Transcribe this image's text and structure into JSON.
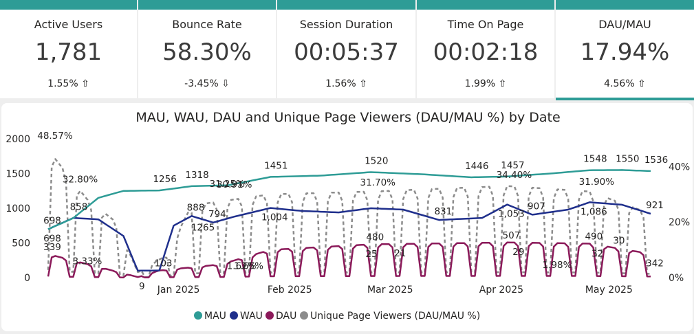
{
  "kpis": [
    {
      "label": "Active Users",
      "value": "1,781",
      "delta": "1.55% ⇧"
    },
    {
      "label": "Bounce Rate",
      "value": "58.30%",
      "delta": "-3.45% ⇩"
    },
    {
      "label": "Session Duration",
      "value": "00:05:37",
      "delta": "1.56% ⇧"
    },
    {
      "label": "Time On Page",
      "value": "00:02:18",
      "delta": "1.99% ⇧"
    },
    {
      "label": "DAU/MAU",
      "value": "17.94%",
      "delta": "4.56% ⇧"
    }
  ],
  "colors": {
    "kpi_accent": "#2e9c96",
    "mau": "#2e9c96",
    "wau": "#1f2f8c",
    "dau": "#8b1a5a",
    "ratio": "#8c8c8c"
  },
  "chart_data": {
    "type": "line",
    "title": "MAU, WAU, DAU and Unique Page Viewers (DAU/MAU %) by Date",
    "x_range": [
      "2024-12-01",
      "2025-05-18"
    ],
    "x_ticks": [
      "Jan 2025",
      "Feb 2025",
      "Mar 2025",
      "Apr 2025",
      "May 2025"
    ],
    "y_left": {
      "min": 0,
      "max": 2000,
      "ticks": [
        "0",
        "500",
        "1000",
        "1500",
        "2000"
      ]
    },
    "y_right": {
      "min": 0,
      "max": 50,
      "ticks": [
        "0%",
        "20%",
        "40%"
      ]
    },
    "grid": false,
    "legend_position": "bottom-center",
    "series": [
      {
        "name": "MAU",
        "axis": "left",
        "points": [
          [
            "2024-12-01",
            698
          ],
          [
            "2024-12-08",
            858
          ],
          [
            "2024-12-15",
            1150
          ],
          [
            "2024-12-22",
            1250
          ],
          [
            "2025-01-01",
            1256
          ],
          [
            "2025-01-10",
            1318
          ],
          [
            "2025-01-20",
            1330
          ],
          [
            "2025-02-01",
            1451
          ],
          [
            "2025-02-15",
            1470
          ],
          [
            "2025-03-01",
            1520
          ],
          [
            "2025-03-15",
            1490
          ],
          [
            "2025-03-29",
            1446
          ],
          [
            "2025-04-08",
            1457
          ],
          [
            "2025-04-20",
            1500
          ],
          [
            "2025-05-01",
            1548
          ],
          [
            "2025-05-10",
            1550
          ],
          [
            "2025-05-18",
            1536
          ]
        ]
      },
      {
        "name": "WAU",
        "axis": "left",
        "points": [
          [
            "2024-12-01",
            698
          ],
          [
            "2024-12-08",
            860
          ],
          [
            "2024-12-15",
            840
          ],
          [
            "2024-12-22",
            600
          ],
          [
            "2024-12-26",
            100
          ],
          [
            "2025-01-01",
            103
          ],
          [
            "2025-01-05",
            750
          ],
          [
            "2025-01-10",
            888
          ],
          [
            "2025-01-16",
            794
          ],
          [
            "2025-01-22",
            880
          ],
          [
            "2025-02-01",
            1004
          ],
          [
            "2025-02-10",
            960
          ],
          [
            "2025-02-20",
            940
          ],
          [
            "2025-03-01",
            1000
          ],
          [
            "2025-03-10",
            980
          ],
          [
            "2025-03-20",
            831
          ],
          [
            "2025-04-01",
            860
          ],
          [
            "2025-04-08",
            1053
          ],
          [
            "2025-04-15",
            907
          ],
          [
            "2025-04-25",
            980
          ],
          [
            "2025-05-01",
            1086
          ],
          [
            "2025-05-10",
            1050
          ],
          [
            "2025-05-18",
            921
          ]
        ]
      },
      {
        "name": "DAU",
        "axis": "left",
        "points": [
          [
            "2024-12-01",
            339
          ],
          [
            "2024-12-26",
            9
          ],
          [
            "2025-01-01",
            103
          ],
          [
            "2025-01-18",
            190
          ],
          [
            "2025-02-01",
            400
          ],
          [
            "2025-03-01",
            480
          ],
          [
            "2025-04-08",
            507
          ],
          [
            "2025-05-01",
            490
          ],
          [
            "2025-05-18",
            342
          ]
        ]
      },
      {
        "name": "Unique Page Viewers (DAU/MAU %)",
        "axis": "right",
        "points": [
          [
            "2024-12-01",
            48.57
          ],
          [
            "2024-12-08",
            32.8
          ],
          [
            "2024-12-10",
            3.33
          ],
          [
            "2025-01-18",
            31.25
          ],
          [
            "2025-01-20",
            30.91
          ],
          [
            "2025-01-22",
            1.62
          ],
          [
            "2025-01-24",
            1.65
          ],
          [
            "2025-03-01",
            31.7
          ],
          [
            "2025-04-08",
            34.4
          ],
          [
            "2025-04-20",
            1.98
          ],
          [
            "2025-05-01",
            31.9
          ]
        ]
      }
    ],
    "data_labels": {
      "mau": [
        {
          "date": "2024-12-08",
          "text": "858"
        },
        {
          "date": "2025-01-01",
          "text": "1256"
        },
        {
          "date": "2025-01-10",
          "text": "1318"
        },
        {
          "date": "2025-02-01",
          "text": "1451"
        },
        {
          "date": "2025-03-01",
          "text": "1520"
        },
        {
          "date": "2025-03-29",
          "text": "1446"
        },
        {
          "date": "2025-04-08",
          "text": "1457"
        },
        {
          "date": "2025-05-01",
          "text": "1548"
        },
        {
          "date": "2025-05-10",
          "text": "1550"
        },
        {
          "date": "2025-05-18",
          "text": "1536"
        }
      ],
      "wau": [
        {
          "date": "2024-12-01",
          "text": "698"
        },
        {
          "date": "2024-12-01b",
          "text": "698"
        },
        {
          "date": "2025-01-10",
          "text": "888"
        },
        {
          "date": "2025-01-12",
          "text": "1265"
        },
        {
          "date": "2025-01-16",
          "text": "794"
        },
        {
          "date": "2025-02-01",
          "text": "1,004"
        },
        {
          "date": "2025-03-20",
          "text": "831"
        },
        {
          "date": "2025-04-08",
          "text": "1,053"
        },
        {
          "date": "2025-04-15",
          "text": "907"
        },
        {
          "date": "2025-05-01",
          "text": "1,086"
        },
        {
          "date": "2025-05-18",
          "text": "921"
        }
      ],
      "dau": [
        {
          "date": "2024-12-01",
          "text": "339"
        },
        {
          "date": "2024-12-26",
          "text": "9"
        },
        {
          "date": "2025-01-01",
          "text": "103"
        },
        {
          "date": "2025-02-28",
          "text": "25"
        },
        {
          "date": "2025-03-01",
          "text": "480"
        },
        {
          "date": "2025-03-08",
          "text": "21"
        },
        {
          "date": "2025-04-08",
          "text": "507"
        },
        {
          "date": "2025-04-10",
          "text": "29"
        },
        {
          "date": "2025-05-01",
          "text": "490"
        },
        {
          "date": "2025-05-02",
          "text": "32"
        },
        {
          "date": "2025-05-08",
          "text": "30"
        },
        {
          "date": "2025-05-18",
          "text": "342"
        }
      ],
      "ratio": [
        {
          "date": "2024-12-01",
          "text": "48.57%"
        },
        {
          "date": "2024-12-08",
          "text": "32.80%"
        },
        {
          "date": "2024-12-10",
          "text": "3.33%"
        },
        {
          "date": "2025-01-18",
          "text": "31.25%"
        },
        {
          "date": "2025-01-20",
          "text": "30.91%"
        },
        {
          "date": "2025-01-22",
          "text": "1.62%"
        },
        {
          "date": "2025-01-24",
          "text": "1.65%"
        },
        {
          "date": "2025-03-01",
          "text": "31.70%"
        },
        {
          "date": "2025-04-08",
          "text": "34.40%"
        },
        {
          "date": "2025-04-20",
          "text": "1.98%"
        },
        {
          "date": "2025-05-01",
          "text": "31.90%"
        }
      ]
    }
  }
}
